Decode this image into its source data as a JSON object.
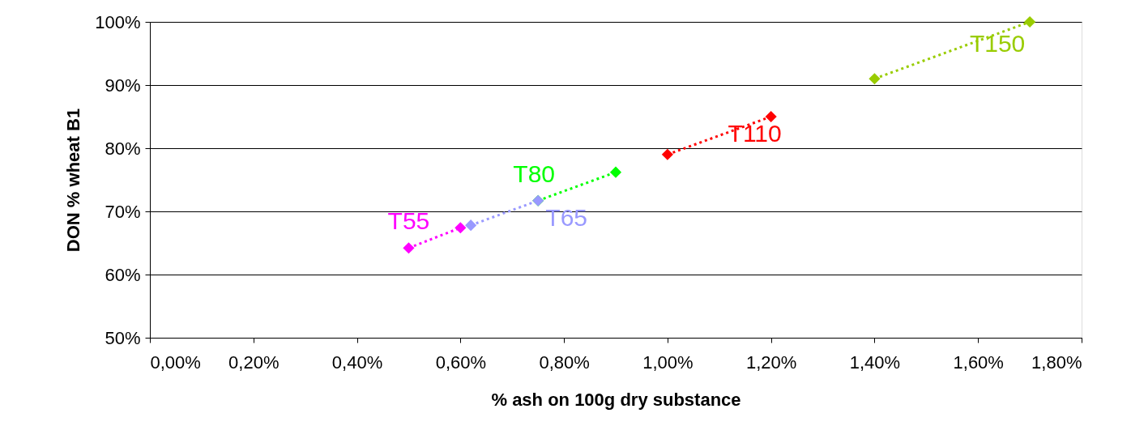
{
  "chart_data": {
    "type": "line",
    "xlabel": "% ash on 100g dry substance",
    "ylabel": "DON % wheat B1",
    "series": [
      {
        "name": "T55",
        "color": "#ff00ff",
        "x": [
          0.5,
          0.6
        ],
        "values": [
          64.2,
          67.4
        ]
      },
      {
        "name": "T65",
        "color": "#9999ff",
        "x": [
          0.62,
          0.75
        ],
        "values": [
          67.8,
          71.7
        ]
      },
      {
        "name": "T80",
        "color": "#00ff00",
        "x": [
          0.75,
          0.9
        ],
        "values": [
          71.7,
          76.2
        ]
      },
      {
        "name": "T110",
        "color": "#ff0000",
        "x": [
          1.0,
          1.2
        ],
        "values": [
          79.0,
          85.0
        ]
      },
      {
        "name": "T150",
        "color": "#99cc00",
        "x": [
          1.4,
          1.7
        ],
        "values": [
          91.0,
          100.0
        ]
      }
    ],
    "xlim": [
      0,
      1.8
    ],
    "xticks": [
      {
        "value": 0,
        "label": "0,00%"
      },
      {
        "value": 0.2,
        "label": "0,20%"
      },
      {
        "value": 0.4,
        "label": "0,40%"
      },
      {
        "value": 0.6,
        "label": "0,60%"
      },
      {
        "value": 0.8,
        "label": "0,80%"
      },
      {
        "value": 1.0,
        "label": "1,00%"
      },
      {
        "value": 1.2,
        "label": "1,20%"
      },
      {
        "value": 1.4,
        "label": "1,40%"
      },
      {
        "value": 1.6,
        "label": "1,60%"
      },
      {
        "value": 1.8,
        "label": "1,80%"
      }
    ],
    "ylim": [
      50,
      100
    ],
    "yticks": [
      {
        "value": 50,
        "label": "50%"
      },
      {
        "value": 60,
        "label": "60%"
      },
      {
        "value": 70,
        "label": "70%"
      },
      {
        "value": 80,
        "label": "80%"
      },
      {
        "value": 90,
        "label": "90%"
      },
      {
        "value": 100,
        "label": "100%"
      }
    ],
    "grid": "y",
    "legend": false,
    "marker": "diamond",
    "line_style": "dotted"
  }
}
